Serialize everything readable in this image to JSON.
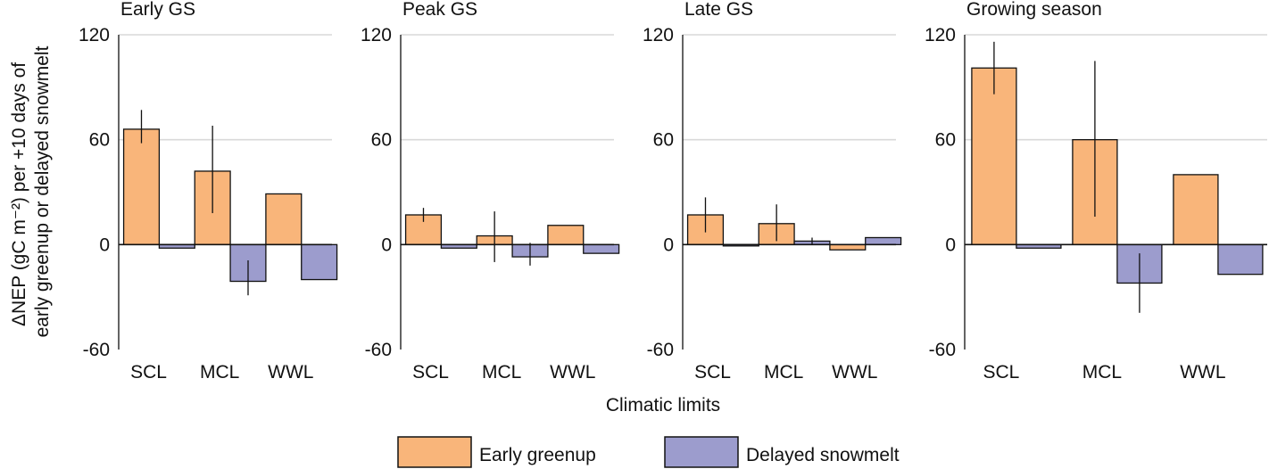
{
  "figure": {
    "ylabel_line1": "ΔNEP (gC m⁻²) per +10 days of",
    "ylabel_line2": "early greenup or delayed snowmelt",
    "xlabel": "Climatic limits"
  },
  "legend": [
    {
      "label": "Early greenup",
      "color": "#F9B57A"
    },
    {
      "label": "Delayed snowmelt",
      "color": "#9C9CCD"
    }
  ],
  "chart_data": [
    {
      "type": "bar",
      "title": "Early GS",
      "categories": [
        "SCL",
        "MCL",
        "WWL"
      ],
      "ylim": [
        -60,
        120
      ],
      "yticks": [
        120,
        60,
        0,
        -60
      ],
      "grid": true,
      "series": [
        {
          "name": "Early greenup",
          "values": [
            66,
            42,
            29
          ],
          "err_low": [
            58,
            18,
            29
          ],
          "err_high": [
            77,
            68,
            29
          ]
        },
        {
          "name": "Delayed snowmelt",
          "values": [
            -2,
            -21,
            -20
          ],
          "err_low": [
            -2,
            -29,
            -20
          ],
          "err_high": [
            -2,
            -9,
            -20
          ]
        }
      ]
    },
    {
      "type": "bar",
      "title": "Peak GS",
      "categories": [
        "SCL",
        "MCL",
        "WWL"
      ],
      "ylim": [
        -60,
        120
      ],
      "yticks": [
        120,
        60,
        0,
        -60
      ],
      "grid": true,
      "series": [
        {
          "name": "Early greenup",
          "values": [
            17,
            5,
            11
          ],
          "err_low": [
            13,
            -10,
            11
          ],
          "err_high": [
            21,
            19,
            11
          ]
        },
        {
          "name": "Delayed snowmelt",
          "values": [
            -2,
            -7,
            -5
          ],
          "err_low": [
            -2,
            -12,
            -5
          ],
          "err_high": [
            -2,
            1,
            -5
          ]
        }
      ]
    },
    {
      "type": "bar",
      "title": "Late GS",
      "categories": [
        "SCL",
        "MCL",
        "WWL"
      ],
      "ylim": [
        -60,
        120
      ],
      "yticks": [
        120,
        60,
        0,
        -60
      ],
      "grid": true,
      "series": [
        {
          "name": "Early greenup",
          "values": [
            17,
            12,
            -3
          ],
          "err_low": [
            7,
            2,
            -3
          ],
          "err_high": [
            27,
            23,
            -3
          ]
        },
        {
          "name": "Delayed snowmelt",
          "values": [
            0,
            2,
            4
          ],
          "err_low": [
            0,
            0,
            4
          ],
          "err_high": [
            0,
            4,
            4
          ]
        }
      ]
    },
    {
      "type": "bar",
      "title": "Growing season",
      "categories": [
        "SCL",
        "MCL",
        "WWL"
      ],
      "ylim": [
        -60,
        120
      ],
      "yticks": [
        120,
        60,
        0,
        -60
      ],
      "grid": true,
      "series": [
        {
          "name": "Early greenup",
          "values": [
            101,
            60,
            40
          ],
          "err_low": [
            86,
            16,
            40
          ],
          "err_high": [
            116,
            105,
            40
          ]
        },
        {
          "name": "Delayed snowmelt",
          "values": [
            -2,
            -22,
            -17
          ],
          "err_low": [
            -2,
            -39,
            -17
          ],
          "err_high": [
            -2,
            -5,
            -17
          ]
        }
      ]
    }
  ]
}
